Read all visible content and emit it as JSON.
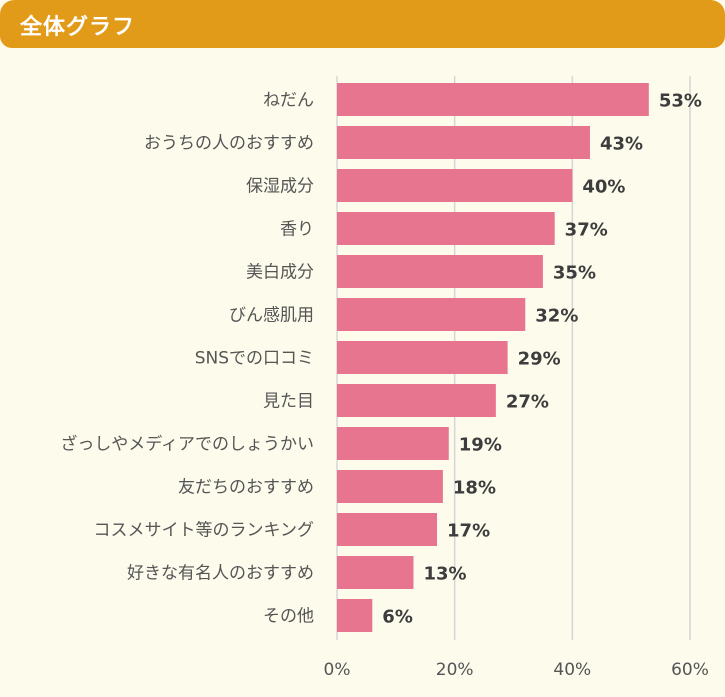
{
  "header": {
    "title": "全体グラフ"
  },
  "colors": {
    "header": "#e29a19",
    "bar": "#e8758f",
    "background": "#fdfbec",
    "grid": "#d6d6d6"
  },
  "chart_data": {
    "type": "bar",
    "orientation": "horizontal",
    "categories": [
      "ねだん",
      "おうちの人のおすすめ",
      "保湿成分",
      "香り",
      "美白成分",
      "びん感肌用",
      "SNSでの口コミ",
      "見た目",
      "ざっしやメディアでのしょうかい",
      "友だちのおすすめ",
      "コスメサイト等のランキング",
      "好きな有名人のおすすめ",
      "その他"
    ],
    "values": [
      53,
      43,
      40,
      37,
      35,
      32,
      29,
      27,
      19,
      18,
      17,
      13,
      6
    ],
    "value_labels": [
      "53%",
      "43%",
      "40%",
      "37%",
      "35%",
      "32%",
      "29%",
      "27%",
      "19%",
      "18%",
      "17%",
      "13%",
      "6%"
    ],
    "xlim": [
      0,
      60
    ],
    "xticks": [
      "0%",
      "20%",
      "40%",
      "60%"
    ],
    "grid": true
  }
}
